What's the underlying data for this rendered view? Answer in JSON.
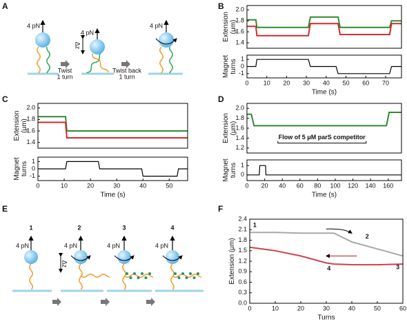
{
  "figure": {
    "panel_labels": [
      "A",
      "B",
      "C",
      "D",
      "E",
      "F"
    ],
    "diagram_a": {
      "force": [
        "4 pN",
        "4 pN",
        "4 pN"
      ],
      "delta_z": "Δz",
      "step_1": [
        "Twist",
        "1 turn"
      ],
      "step_2": [
        "Twist back",
        "1 turn"
      ]
    },
    "diagram_e": {
      "stages": [
        "1",
        "2",
        "3",
        "4"
      ],
      "force": [
        "4 pN",
        "4 pN",
        "4 pN",
        "4 pN"
      ],
      "delta_z": "Δz"
    }
  },
  "chart_data": [
    {
      "type": "line",
      "ylabel": [
        "Extension",
        "(μm)"
      ],
      "xlim": [
        0,
        78
      ],
      "ylim": [
        1.3,
        2.08
      ],
      "yticks": [
        1.4,
        1.6,
        1.8,
        {
          "value": 2.0,
          "label": "2.0"
        }
      ],
      "x": [
        0,
        4.5,
        5,
        31,
        32,
        46,
        47,
        72,
        73,
        78
      ],
      "series": [
        {
          "name": "green",
          "color": "#2e8b2e",
          "values": [
            1.82,
            1.82,
            1.68,
            1.68,
            1.87,
            1.87,
            1.68,
            1.68,
            1.8,
            1.8
          ]
        },
        {
          "name": "red",
          "color": "#d02a2a",
          "values": [
            1.7,
            1.7,
            1.53,
            1.53,
            1.75,
            1.75,
            1.55,
            1.55,
            1.75,
            1.75
          ]
        }
      ]
    },
    {
      "type": "line",
      "ylabel": [
        "Magnet",
        "turns"
      ],
      "xlabel": "Time (s)",
      "xlim": [
        0,
        78
      ],
      "ylim": [
        -1.6,
        1.6
      ],
      "yticks": [
        -1,
        0,
        1
      ],
      "xticks": [
        0,
        10,
        20,
        30,
        40,
        50,
        60,
        70
      ],
      "x": [
        0,
        4.5,
        5,
        31,
        32,
        45,
        46,
        72,
        73,
        78
      ],
      "series": [
        {
          "name": "turns",
          "color": "#000000",
          "values": [
            0,
            0,
            1,
            1,
            0,
            0,
            -1,
            -1,
            0,
            0
          ]
        }
      ]
    },
    {
      "type": "line",
      "ylabel": [
        "Extension",
        "(μm)"
      ],
      "xlim": [
        0,
        57
      ],
      "ylim": [
        1.3,
        2.08
      ],
      "yticks": [
        1.4,
        1.6,
        1.8,
        {
          "value": 2.0,
          "label": "2.0"
        }
      ],
      "x": [
        0,
        10.5,
        11,
        57
      ],
      "series": [
        {
          "name": "green",
          "color": "#2e8b2e",
          "values": [
            1.85,
            1.85,
            1.6,
            1.6
          ]
        },
        {
          "name": "red",
          "color": "#d02a2a",
          "values": [
            1.75,
            1.75,
            1.48,
            1.48
          ]
        }
      ]
    },
    {
      "type": "line",
      "ylabel": [
        "Magnet",
        "turns"
      ],
      "xlabel": "Time (s)",
      "xlim": [
        0,
        57
      ],
      "ylim": [
        -1.6,
        1.6
      ],
      "yticks": [
        -1,
        0,
        1
      ],
      "xticks": [
        0,
        10,
        20,
        30,
        40,
        50
      ],
      "x": [
        0,
        10.5,
        11,
        23,
        23.5,
        39.5,
        40,
        53,
        53.5,
        57
      ],
      "series": [
        {
          "name": "turns",
          "color": "#000000",
          "values": [
            0,
            0,
            1,
            1,
            0,
            0,
            -1,
            -1,
            0,
            0
          ]
        }
      ]
    },
    {
      "type": "line",
      "ylabel": [
        "Extension",
        "(μm)"
      ],
      "xlim": [
        0,
        175
      ],
      "ylim": [
        1.1,
        2.1
      ],
      "yticks": [
        1.2,
        1.4,
        1.6,
        1.8,
        {
          "value": 2.0,
          "label": "2.0"
        }
      ],
      "x": [
        0,
        5,
        8,
        158,
        161,
        175
      ],
      "series": [
        {
          "name": "green",
          "color": "#2e8b2e",
          "values": [
            1.88,
            1.88,
            1.65,
            1.65,
            1.92,
            1.92
          ]
        }
      ],
      "annotation": {
        "text": "Flow of 5 μM parS competitor",
        "span": [
          35,
          135
        ],
        "y": 1.3
      }
    },
    {
      "type": "line",
      "ylabel": [
        "Magnet",
        "turns"
      ],
      "xlabel": "Time (s)",
      "xlim": [
        0,
        175
      ],
      "ylim": [
        -0.6,
        1.6
      ],
      "yticks": [
        0,
        1
      ],
      "xticks": [
        0,
        20,
        40,
        60,
        80,
        100,
        120,
        140,
        160
      ],
      "x": [
        0,
        14,
        14.5,
        21,
        21.5,
        175
      ],
      "series": [
        {
          "name": "turns",
          "color": "#000000",
          "values": [
            0,
            0,
            1,
            1,
            0,
            0
          ]
        }
      ]
    },
    {
      "type": "line",
      "ylabel": [
        "Extension (μm)"
      ],
      "xlabel": "Turns",
      "xlim": [
        0,
        60
      ],
      "ylim": [
        0,
        2.4
      ],
      "yticks": [
        {
          "value": 0,
          "label": "0.0"
        },
        0.3,
        0.6,
        0.9,
        1.2,
        1.5,
        1.8,
        2.1,
        2.4
      ],
      "xticks": [
        0,
        10,
        20,
        30,
        40,
        50,
        60
      ],
      "x": [
        0,
        10,
        20,
        30,
        33,
        40,
        50,
        60
      ],
      "series": [
        {
          "name": "gray",
          "color": "#a8a8a8",
          "values": [
            2.02,
            2.02,
            2.0,
            2.0,
            2.0,
            1.75,
            1.55,
            1.35
          ]
        },
        {
          "name": "red",
          "color": "#d0404a",
          "values": [
            1.6,
            1.5,
            1.35,
            1.15,
            1.12,
            1.1,
            1.1,
            1.12
          ]
        }
      ],
      "labels": [
        {
          "text": "1",
          "x": 2,
          "y": 2.22
        },
        {
          "text": "2",
          "x": 46,
          "y": 1.9
        },
        {
          "text": "3",
          "x": 58,
          "y": 1.02
        },
        {
          "text": "4",
          "x": 31,
          "y": 0.98
        }
      ]
    }
  ]
}
